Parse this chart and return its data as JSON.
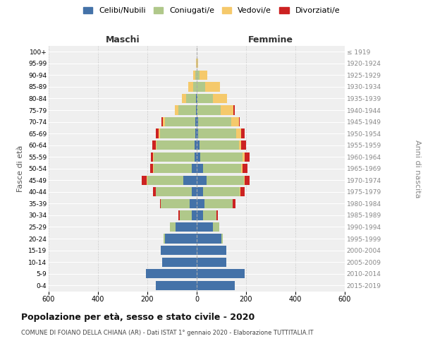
{
  "age_groups": [
    "0-4",
    "5-9",
    "10-14",
    "15-19",
    "20-24",
    "25-29",
    "30-34",
    "35-39",
    "40-44",
    "45-49",
    "50-54",
    "55-59",
    "60-64",
    "65-69",
    "70-74",
    "75-79",
    "80-84",
    "85-89",
    "90-94",
    "95-99",
    "100+"
  ],
  "birth_years": [
    "2015-2019",
    "2010-2014",
    "2005-2009",
    "2000-2004",
    "1995-1999",
    "1990-1994",
    "1985-1989",
    "1980-1984",
    "1975-1979",
    "1970-1974",
    "1965-1969",
    "1960-1964",
    "1955-1959",
    "1950-1954",
    "1945-1949",
    "1940-1944",
    "1935-1939",
    "1930-1934",
    "1925-1929",
    "1920-1924",
    "≤ 1919"
  ],
  "maschi": {
    "celibi": [
      165,
      205,
      140,
      145,
      130,
      85,
      20,
      30,
      20,
      55,
      20,
      10,
      8,
      5,
      5,
      3,
      2,
      0,
      0,
      0,
      0
    ],
    "coniugati": [
      0,
      0,
      0,
      0,
      5,
      25,
      50,
      115,
      145,
      145,
      155,
      165,
      155,
      145,
      125,
      70,
      40,
      15,
      5,
      0,
      0
    ],
    "vedovi": [
      0,
      0,
      0,
      0,
      0,
      0,
      0,
      0,
      2,
      2,
      2,
      2,
      3,
      5,
      8,
      15,
      18,
      20,
      8,
      2,
      0
    ],
    "divorziati": [
      0,
      0,
      0,
      0,
      0,
      0,
      5,
      5,
      10,
      20,
      12,
      10,
      15,
      10,
      5,
      0,
      0,
      0,
      0,
      0,
      0
    ]
  },
  "femmine": {
    "nubili": [
      155,
      195,
      120,
      120,
      100,
      65,
      25,
      30,
      25,
      40,
      25,
      15,
      10,
      5,
      5,
      3,
      2,
      0,
      0,
      0,
      0
    ],
    "coniugate": [
      0,
      0,
      0,
      0,
      5,
      25,
      55,
      115,
      150,
      150,
      155,
      170,
      160,
      155,
      135,
      95,
      65,
      35,
      12,
      2,
      0
    ],
    "vedove": [
      0,
      0,
      0,
      0,
      0,
      0,
      0,
      2,
      3,
      5,
      5,
      8,
      10,
      20,
      30,
      50,
      55,
      60,
      30,
      5,
      0
    ],
    "divorziate": [
      0,
      0,
      0,
      0,
      0,
      2,
      5,
      10,
      15,
      20,
      20,
      20,
      20,
      15,
      5,
      5,
      0,
      0,
      0,
      0,
      0
    ]
  },
  "colors": {
    "celibi": "#4472a8",
    "coniugati": "#b0c88a",
    "vedovi": "#f5c96b",
    "divorziati": "#cc2222"
  },
  "title": "Popolazione per età, sesso e stato civile - 2020",
  "subtitle": "COMUNE DI FOIANO DELLA CHIANA (AR) - Dati ISTAT 1° gennaio 2020 - Elaborazione TUTTITALIA.IT",
  "xlabel_left": "Maschi",
  "xlabel_right": "Femmine",
  "ylabel_left": "Fasce di età",
  "ylabel_right": "Anni di nascita",
  "xlim": 600,
  "legend_labels": [
    "Celibi/Nubili",
    "Coniugati/e",
    "Vedovi/e",
    "Divorziati/e"
  ],
  "background_color": "#ffffff",
  "plot_bg": "#efefef"
}
